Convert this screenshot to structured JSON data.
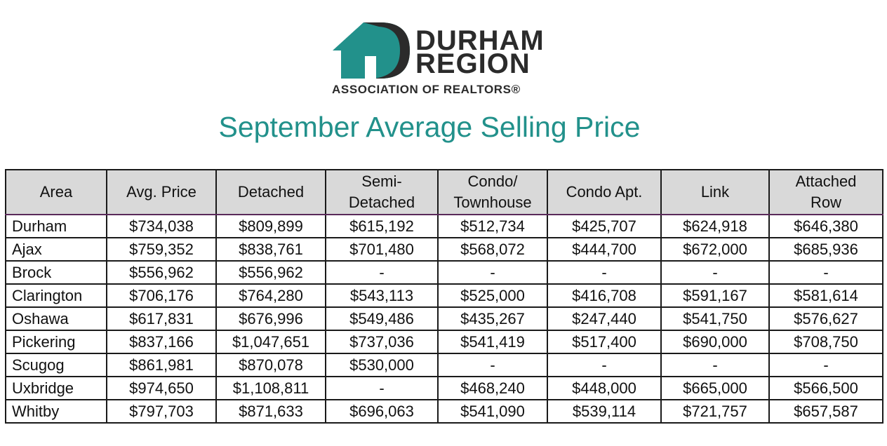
{
  "logo": {
    "line1": "DURHAM",
    "line2": "REGION",
    "line3": "ASSOCIATION OF REALTORS®",
    "accent_color": "#22918b"
  },
  "chart_data": {
    "type": "table",
    "title": "September Average Selling Price",
    "columns": [
      "Area",
      "Avg. Price",
      "Detached",
      "Semi-Detached",
      "Condo/ Townhouse",
      "Condo Apt.",
      "Link",
      "Attached Row"
    ],
    "column_lines": [
      [
        "Area"
      ],
      [
        "Avg. Price"
      ],
      [
        "Detached"
      ],
      [
        "Semi-",
        "Detached"
      ],
      [
        "Condo/",
        "Townhouse"
      ],
      [
        "Condo Apt."
      ],
      [
        "Link"
      ],
      [
        "Attached",
        "Row"
      ]
    ],
    "rows": [
      [
        "Durham",
        "$734,038",
        "$809,899",
        "$615,192",
        "$512,734",
        "$425,707",
        "$624,918",
        "$646,380"
      ],
      [
        "Ajax",
        "$759,352",
        "$838,761",
        "$701,480",
        "$568,072",
        "$444,700",
        "$672,000",
        "$685,936"
      ],
      [
        "Brock",
        "$556,962",
        "$556,962",
        "-",
        "-",
        "-",
        "-",
        "-"
      ],
      [
        "Clarington",
        "$706,176",
        "$764,280",
        "$543,113",
        "$525,000",
        "$416,708",
        "$591,167",
        "$581,614"
      ],
      [
        "Oshawa",
        "$617,831",
        "$676,996",
        "$549,486",
        "$435,267",
        "$247,440",
        "$541,750",
        "$576,627"
      ],
      [
        "Pickering",
        "$837,166",
        "$1,047,651",
        "$737,036",
        "$541,419",
        "$517,400",
        "$690,000",
        "$708,750"
      ],
      [
        "Scugog",
        "$861,981",
        "$870,078",
        "$530,000",
        "-",
        "-",
        "-",
        "-"
      ],
      [
        "Uxbridge",
        "$974,650",
        "$1,108,811",
        "-",
        "$468,240",
        "$448,000",
        "$665,000",
        "$566,500"
      ],
      [
        "Whitby",
        "$797,703",
        "$871,633",
        "$696,063",
        "$541,090",
        "$539,114",
        "$721,757",
        "$657,587"
      ]
    ],
    "header_background": "#d9d9d9",
    "title_color": "#22918b"
  }
}
